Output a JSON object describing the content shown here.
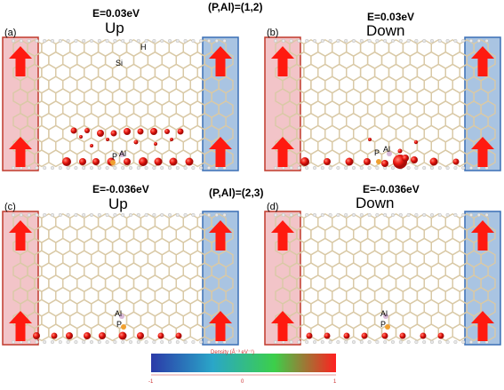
{
  "group_top": {
    "pair_label": "(P,Al)=(1,2)",
    "panel_a": {
      "label": "(a)",
      "energy": "E=0.03eV",
      "spin": "Up",
      "atoms": {
        "h": "H",
        "si": "Si",
        "p": "P",
        "al": "Al"
      }
    },
    "panel_b": {
      "label": "(b)",
      "energy": "E=0.03eV",
      "spin": "Down",
      "atoms": {
        "p": "P",
        "al": "Al"
      }
    }
  },
  "group_bottom": {
    "pair_label": "(P,Al)=(2,3)",
    "panel_c": {
      "label": "(c)",
      "energy": "E=-0.036eV",
      "spin": "Up",
      "atoms": {
        "al": "Al",
        "p": "P"
      }
    },
    "panel_d": {
      "label": "(d)",
      "energy": "E=-0.036eV",
      "spin": "Down",
      "atoms": {
        "al": "Al",
        "p": "P"
      }
    }
  },
  "colorbar": {
    "title": "Density (Å⁻³ eV⁻¹)",
    "ticks": [
      "-1",
      "0",
      "1"
    ],
    "colors": [
      "#2b3aa8",
      "#2aa6c8",
      "#3ccf4a",
      "#ff2020"
    ]
  },
  "colors": {
    "left_electrode": "#f2c4c8",
    "right_electrode": "#a9c4e2",
    "arrow": "#ff1a10",
    "bond": "#d9c9a6",
    "density": "#ee1a12"
  }
}
